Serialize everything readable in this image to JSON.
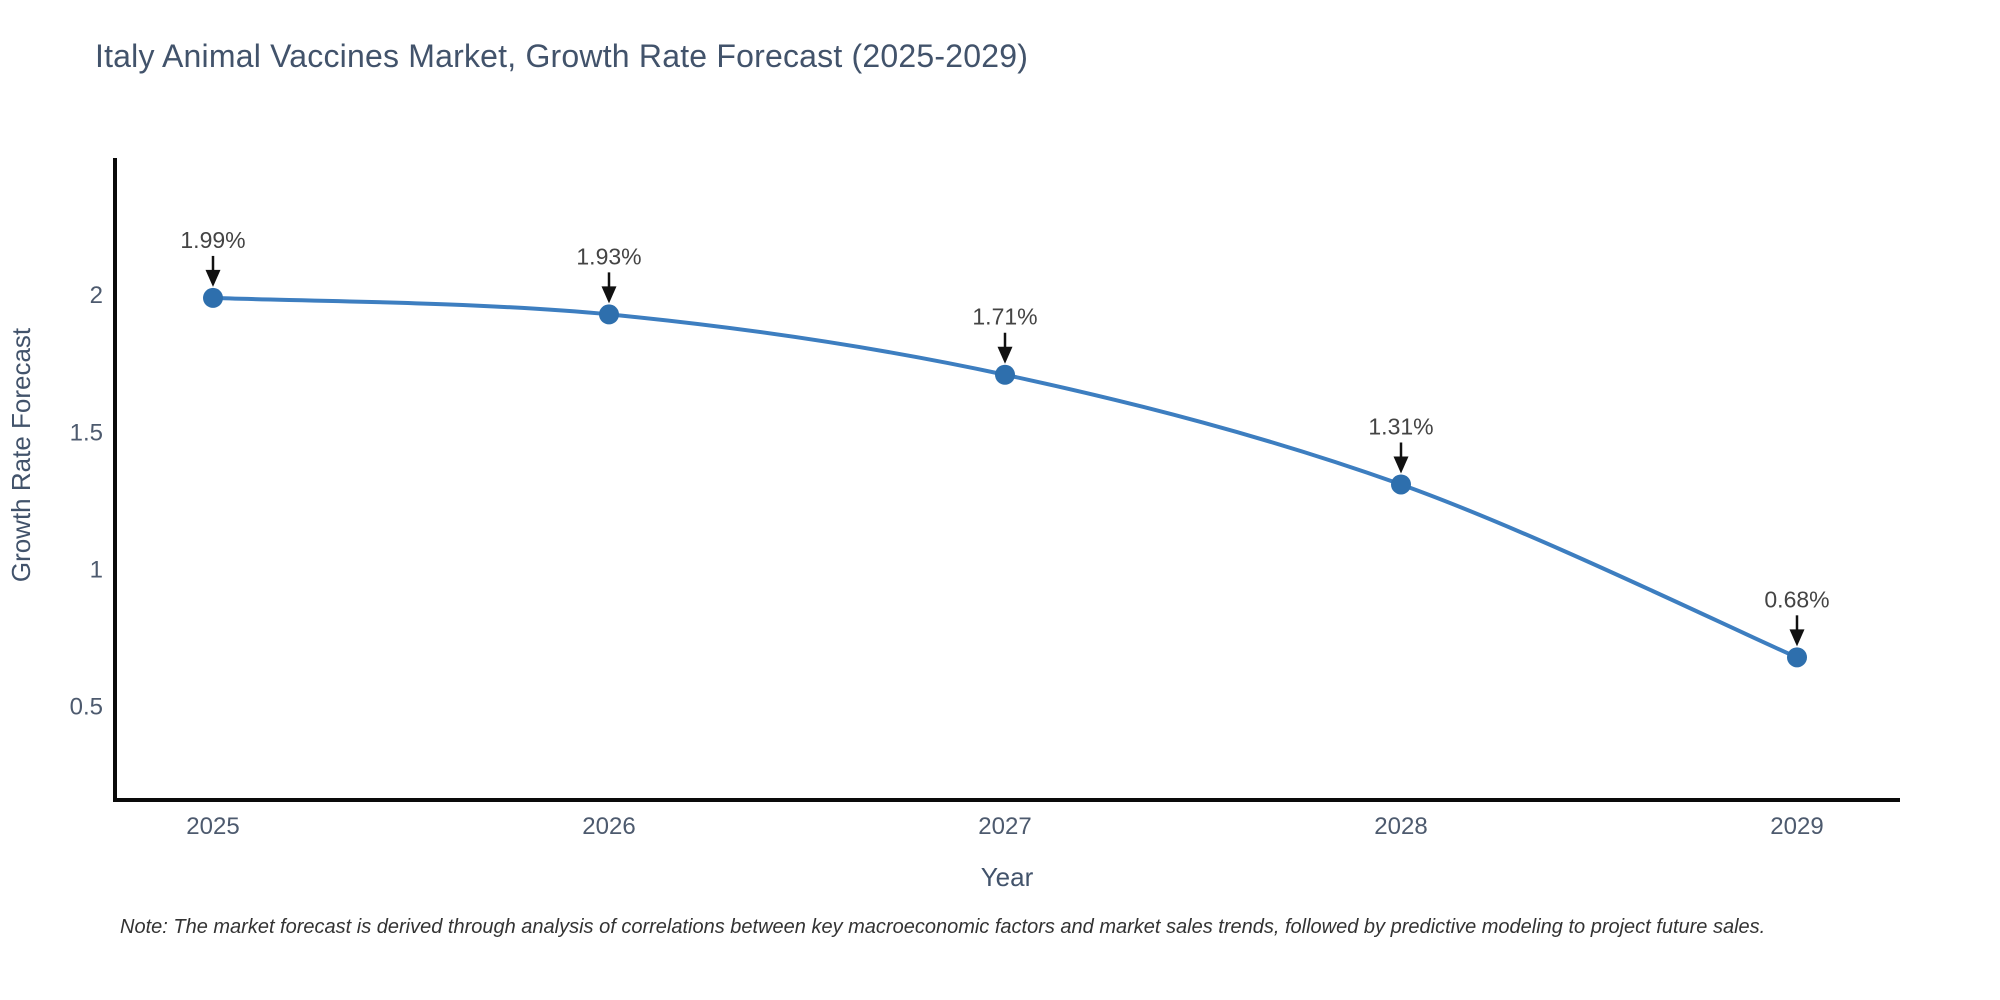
{
  "title": "Italy Animal Vaccines Market, Growth Rate Forecast (2025-2029)",
  "note": "Note: The market forecast is derived through analysis of correlations between key macroeconomic factors and market sales trends, followed by predictive modeling to project future sales.",
  "chart_data": {
    "type": "line",
    "x": [
      "2025",
      "2026",
      "2027",
      "2028",
      "2029"
    ],
    "series": [
      {
        "name": "Growth Rate Forecast",
        "values": [
          1.99,
          1.93,
          1.71,
          1.31,
          0.68
        ],
        "point_labels": [
          "1.99%",
          "1.93%",
          "1.71%",
          "1.31%",
          "0.68%"
        ]
      }
    ],
    "title": "Italy Animal Vaccines Market, Growth Rate Forecast (2025-2029)",
    "xlabel": "Year",
    "ylabel": "Growth Rate Forecast",
    "yticks": [
      "0.5",
      "1",
      "1.5",
      "2"
    ],
    "ytick_values": [
      0.5,
      1,
      1.5,
      2
    ],
    "ylim": [
      0.16,
      2.5
    ],
    "grid": false,
    "legend_position": "none",
    "line_shape": "spline",
    "colors": {
      "line": "#3d7ec0",
      "marker": "#2e6fad",
      "axis_line": "#0a0a0a",
      "arrow": "#111111",
      "annotation_text": "#444444",
      "tick_text": "#4d5a6e",
      "axis_title_text": "#42536b",
      "title_text": "#42536b",
      "background": "#ffffff"
    }
  }
}
